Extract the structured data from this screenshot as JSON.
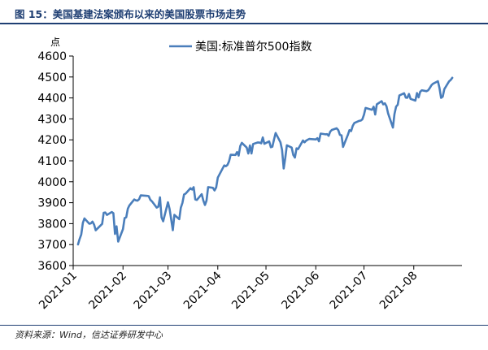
{
  "figure": {
    "title": "图 15：美国基建法案颁布以来的美国股票市场走势",
    "source": "资料来源：Wind，信达证券研发中心"
  },
  "colors": {
    "line": "#4a7ebb",
    "axis": "#000000",
    "title": "#1f3f73"
  },
  "chart_data": {
    "type": "line",
    "title": "",
    "xlabel": "",
    "ylabel": "点",
    "ylim": [
      3600,
      4600
    ],
    "yticks": [
      3600,
      3700,
      3800,
      3900,
      4000,
      4100,
      4200,
      4300,
      4400,
      4500,
      4600
    ],
    "xticks": [
      "2021-01",
      "2021-02",
      "2021-03",
      "2021-04",
      "2021-05",
      "2021-06",
      "2021-07",
      "2021-08"
    ],
    "x_range": [
      "2021-01-01",
      "2021-08-31"
    ],
    "grid": false,
    "legend_position": "top",
    "series": [
      {
        "name": "美国:标准普尔500指数",
        "color": "#4a7ebb",
        "points": [
          [
            "2021-01-04",
            3700.65
          ],
          [
            "2021-01-05",
            3726.86
          ],
          [
            "2021-01-06",
            3748.14
          ],
          [
            "2021-01-07",
            3803.79
          ],
          [
            "2021-01-08",
            3824.68
          ],
          [
            "2021-01-11",
            3799.61
          ],
          [
            "2021-01-12",
            3801.19
          ],
          [
            "2021-01-13",
            3809.84
          ],
          [
            "2021-01-14",
            3795.54
          ],
          [
            "2021-01-15",
            3768.25
          ],
          [
            "2021-01-19",
            3798.91
          ],
          [
            "2021-01-20",
            3851.85
          ],
          [
            "2021-01-21",
            3853.07
          ],
          [
            "2021-01-22",
            3841.47
          ],
          [
            "2021-01-25",
            3855.36
          ],
          [
            "2021-01-26",
            3849.62
          ],
          [
            "2021-01-27",
            3750.77
          ],
          [
            "2021-01-28",
            3787.38
          ],
          [
            "2021-01-29",
            3714.24
          ],
          [
            "2021-02-01",
            3773.86
          ],
          [
            "2021-02-02",
            3826.31
          ],
          [
            "2021-02-03",
            3830.17
          ],
          [
            "2021-02-04",
            3871.74
          ],
          [
            "2021-02-05",
            3886.83
          ],
          [
            "2021-02-08",
            3915.59
          ],
          [
            "2021-02-09",
            3911.23
          ],
          [
            "2021-02-10",
            3909.88
          ],
          [
            "2021-02-11",
            3916.38
          ],
          [
            "2021-02-12",
            3934.83
          ],
          [
            "2021-02-16",
            3932.59
          ],
          [
            "2021-02-17",
            3931.33
          ],
          [
            "2021-02-18",
            3913.97
          ],
          [
            "2021-02-19",
            3906.71
          ],
          [
            "2021-02-22",
            3876.5
          ],
          [
            "2021-02-23",
            3881.37
          ],
          [
            "2021-02-24",
            3925.43
          ],
          [
            "2021-02-25",
            3829.34
          ],
          [
            "2021-02-26",
            3811.15
          ],
          [
            "2021-03-01",
            3901.82
          ],
          [
            "2021-03-02",
            3870.29
          ],
          [
            "2021-03-03",
            3819.72
          ],
          [
            "2021-03-04",
            3768.47
          ],
          [
            "2021-03-05",
            3841.94
          ],
          [
            "2021-03-08",
            3821.35
          ],
          [
            "2021-03-09",
            3875.44
          ],
          [
            "2021-03-10",
            3898.81
          ],
          [
            "2021-03-11",
            3939.34
          ],
          [
            "2021-03-12",
            3943.34
          ],
          [
            "2021-03-15",
            3968.94
          ],
          [
            "2021-03-16",
            3962.71
          ],
          [
            "2021-03-17",
            3974.12
          ],
          [
            "2021-03-18",
            3915.46
          ],
          [
            "2021-03-19",
            3913.1
          ],
          [
            "2021-03-22",
            3940.59
          ],
          [
            "2021-03-23",
            3910.52
          ],
          [
            "2021-03-24",
            3889.14
          ],
          [
            "2021-03-25",
            3909.52
          ],
          [
            "2021-03-26",
            3974.54
          ],
          [
            "2021-03-29",
            3971.09
          ],
          [
            "2021-03-30",
            3958.55
          ],
          [
            "2021-03-31",
            3972.89
          ],
          [
            "2021-04-01",
            4019.87
          ],
          [
            "2021-04-05",
            4077.91
          ],
          [
            "2021-04-06",
            4073.94
          ],
          [
            "2021-04-07",
            4079.95
          ],
          [
            "2021-04-08",
            4097.17
          ],
          [
            "2021-04-09",
            4128.8
          ],
          [
            "2021-04-12",
            4127.99
          ],
          [
            "2021-04-13",
            4141.59
          ],
          [
            "2021-04-14",
            4124.66
          ],
          [
            "2021-04-15",
            4170.42
          ],
          [
            "2021-04-16",
            4185.47
          ],
          [
            "2021-04-19",
            4163.26
          ],
          [
            "2021-04-20",
            4134.94
          ],
          [
            "2021-04-21",
            4173.42
          ],
          [
            "2021-04-22",
            4134.98
          ],
          [
            "2021-04-23",
            4180.17
          ],
          [
            "2021-04-26",
            4187.62
          ],
          [
            "2021-04-27",
            4186.72
          ],
          [
            "2021-04-28",
            4183.18
          ],
          [
            "2021-04-29",
            4211.47
          ],
          [
            "2021-04-30",
            4181.17
          ],
          [
            "2021-05-03",
            4192.66
          ],
          [
            "2021-05-04",
            4164.66
          ],
          [
            "2021-05-05",
            4167.59
          ],
          [
            "2021-05-06",
            4201.62
          ],
          [
            "2021-05-07",
            4232.6
          ],
          [
            "2021-05-10",
            4188.43
          ],
          [
            "2021-05-11",
            4152.1
          ],
          [
            "2021-05-12",
            4063.04
          ],
          [
            "2021-05-13",
            4112.5
          ],
          [
            "2021-05-14",
            4173.85
          ],
          [
            "2021-05-17",
            4163.29
          ],
          [
            "2021-05-18",
            4127.83
          ],
          [
            "2021-05-19",
            4115.68
          ],
          [
            "2021-05-20",
            4159.12
          ],
          [
            "2021-05-21",
            4155.86
          ],
          [
            "2021-05-24",
            4197.05
          ],
          [
            "2021-05-25",
            4188.13
          ],
          [
            "2021-05-26",
            4195.99
          ],
          [
            "2021-05-27",
            4200.88
          ],
          [
            "2021-05-28",
            4204.11
          ],
          [
            "2021-06-01",
            4202.04
          ],
          [
            "2021-06-02",
            4208.12
          ],
          [
            "2021-06-03",
            4192.85
          ],
          [
            "2021-06-04",
            4229.89
          ],
          [
            "2021-06-07",
            4226.52
          ],
          [
            "2021-06-08",
            4227.26
          ],
          [
            "2021-06-09",
            4219.55
          ],
          [
            "2021-06-10",
            4239.18
          ],
          [
            "2021-06-11",
            4247.44
          ],
          [
            "2021-06-14",
            4255.15
          ],
          [
            "2021-06-15",
            4246.59
          ],
          [
            "2021-06-16",
            4223.7
          ],
          [
            "2021-06-17",
            4221.86
          ],
          [
            "2021-06-18",
            4166.45
          ],
          [
            "2021-06-21",
            4224.79
          ],
          [
            "2021-06-22",
            4246.44
          ],
          [
            "2021-06-23",
            4241.84
          ],
          [
            "2021-06-24",
            4266.49
          ],
          [
            "2021-06-25",
            4280.7
          ],
          [
            "2021-06-28",
            4290.61
          ],
          [
            "2021-06-29",
            4291.8
          ],
          [
            "2021-06-30",
            4297.5
          ],
          [
            "2021-07-01",
            4319.94
          ],
          [
            "2021-07-02",
            4352.34
          ],
          [
            "2021-07-06",
            4343.54
          ],
          [
            "2021-07-07",
            4358.13
          ],
          [
            "2021-07-08",
            4320.82
          ],
          [
            "2021-07-09",
            4369.55
          ],
          [
            "2021-07-12",
            4384.63
          ],
          [
            "2021-07-13",
            4369.21
          ],
          [
            "2021-07-14",
            4374.3
          ],
          [
            "2021-07-15",
            4360.03
          ],
          [
            "2021-07-16",
            4327.16
          ],
          [
            "2021-07-19",
            4258.49
          ],
          [
            "2021-07-20",
            4323.06
          ],
          [
            "2021-07-21",
            4358.69
          ],
          [
            "2021-07-22",
            4367.48
          ],
          [
            "2021-07-23",
            4411.79
          ],
          [
            "2021-07-26",
            4422.3
          ],
          [
            "2021-07-27",
            4401.46
          ],
          [
            "2021-07-28",
            4400.64
          ],
          [
            "2021-07-29",
            4419.15
          ],
          [
            "2021-07-30",
            4395.26
          ],
          [
            "2021-08-02",
            4387.16
          ],
          [
            "2021-08-03",
            4423.15
          ],
          [
            "2021-08-04",
            4402.66
          ],
          [
            "2021-08-05",
            4429.1
          ],
          [
            "2021-08-06",
            4436.52
          ],
          [
            "2021-08-09",
            4432.35
          ],
          [
            "2021-08-10",
            4436.75
          ],
          [
            "2021-08-11",
            4447.7
          ],
          [
            "2021-08-12",
            4460.83
          ],
          [
            "2021-08-13",
            4468.0
          ],
          [
            "2021-08-16",
            4479.71
          ],
          [
            "2021-08-17",
            4448.08
          ],
          [
            "2021-08-18",
            4400.27
          ],
          [
            "2021-08-19",
            4405.8
          ],
          [
            "2021-08-20",
            4441.67
          ],
          [
            "2021-08-23",
            4479.53
          ],
          [
            "2021-08-24",
            4486.23
          ],
          [
            "2021-08-25",
            4496.19
          ]
        ]
      }
    ]
  }
}
